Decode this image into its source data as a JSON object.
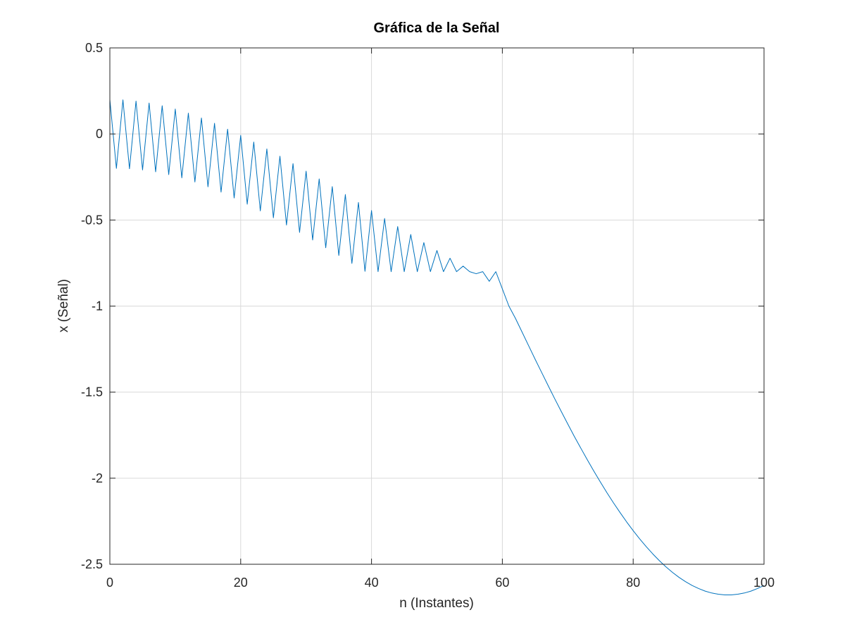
{
  "chart_data": {
    "type": "line",
    "title": "Gráfica de la Señal",
    "xlabel": "n (Instantes)",
    "ylabel": "x (Señal)",
    "xlim": [
      0,
      100
    ],
    "ylim": [
      -2.5,
      0.5
    ],
    "xticks": [
      0,
      20,
      40,
      60,
      80,
      100
    ],
    "xtick_labels": [
      "0",
      "20",
      "40",
      "60",
      "80",
      "100"
    ],
    "yticks": [
      -2.5,
      -2,
      -1.5,
      -1,
      -0.5,
      0,
      0.5
    ],
    "ytick_labels": [
      "-2.5",
      "-2",
      "-1.5",
      "-1",
      "-0.5",
      "0",
      "0.5"
    ],
    "grid": true,
    "legend": false,
    "series": [
      {
        "color": "#0072bd",
        "x": [
          0,
          1,
          2,
          3,
          4,
          5,
          6,
          7,
          8,
          9,
          10,
          11,
          12,
          13,
          14,
          15,
          16,
          17,
          18,
          19,
          20,
          21,
          22,
          23,
          24,
          25,
          26,
          27,
          28,
          29,
          30,
          31,
          32,
          33,
          34,
          35,
          36,
          37,
          38,
          39,
          40,
          41,
          42,
          43,
          44,
          45,
          46,
          47,
          48,
          49,
          50,
          51,
          52,
          53,
          54,
          55,
          56,
          57,
          58,
          59,
          60,
          61,
          62,
          63,
          64,
          65,
          66,
          67,
          68,
          69,
          70,
          71,
          72,
          73,
          74,
          75,
          76,
          77,
          78,
          79,
          80,
          81,
          82,
          83,
          84,
          85,
          86,
          87,
          88,
          89,
          90,
          91,
          92,
          93,
          94,
          95,
          96,
          97,
          98,
          99,
          100
        ],
        "y": [
          0.2,
          -0.2,
          0.198,
          -0.202,
          0.191,
          -0.209,
          0.18,
          -0.22,
          0.164,
          -0.236,
          0.145,
          -0.255,
          0.121,
          -0.279,
          0.093,
          -0.307,
          0.062,
          -0.338,
          0.028,
          -0.372,
          -0.008,
          -0.408,
          -0.047,
          -0.447,
          -0.087,
          -0.487,
          -0.129,
          -0.529,
          -0.172,
          -0.572,
          -0.216,
          -0.616,
          -0.261,
          -0.661,
          -0.306,
          -0.706,
          -0.352,
          -0.752,
          -0.398,
          -0.798,
          -0.445,
          -0.8,
          -0.491,
          -0.8,
          -0.538,
          -0.8,
          -0.584,
          -0.8,
          -0.631,
          -0.8,
          -0.677,
          -0.8,
          -0.722,
          -0.8,
          -0.768,
          -0.8,
          -0.812,
          -0.8,
          -0.856,
          -0.8,
          -0.9,
          -1.0,
          -1.071,
          -1.15,
          -1.229,
          -1.308,
          -1.385,
          -1.462,
          -1.538,
          -1.612,
          -1.685,
          -1.757,
          -1.826,
          -1.894,
          -1.96,
          -2.023,
          -2.085,
          -2.144,
          -2.2,
          -2.254,
          -2.305,
          -2.353,
          -2.398,
          -2.44,
          -2.479,
          -2.515,
          -2.547,
          -2.576,
          -2.601,
          -2.623,
          -2.641,
          -2.656,
          -2.667,
          -2.674,
          -2.678,
          -2.678,
          -2.674,
          -2.667,
          -2.656,
          -2.641,
          -2.623
        ]
      }
    ]
  }
}
